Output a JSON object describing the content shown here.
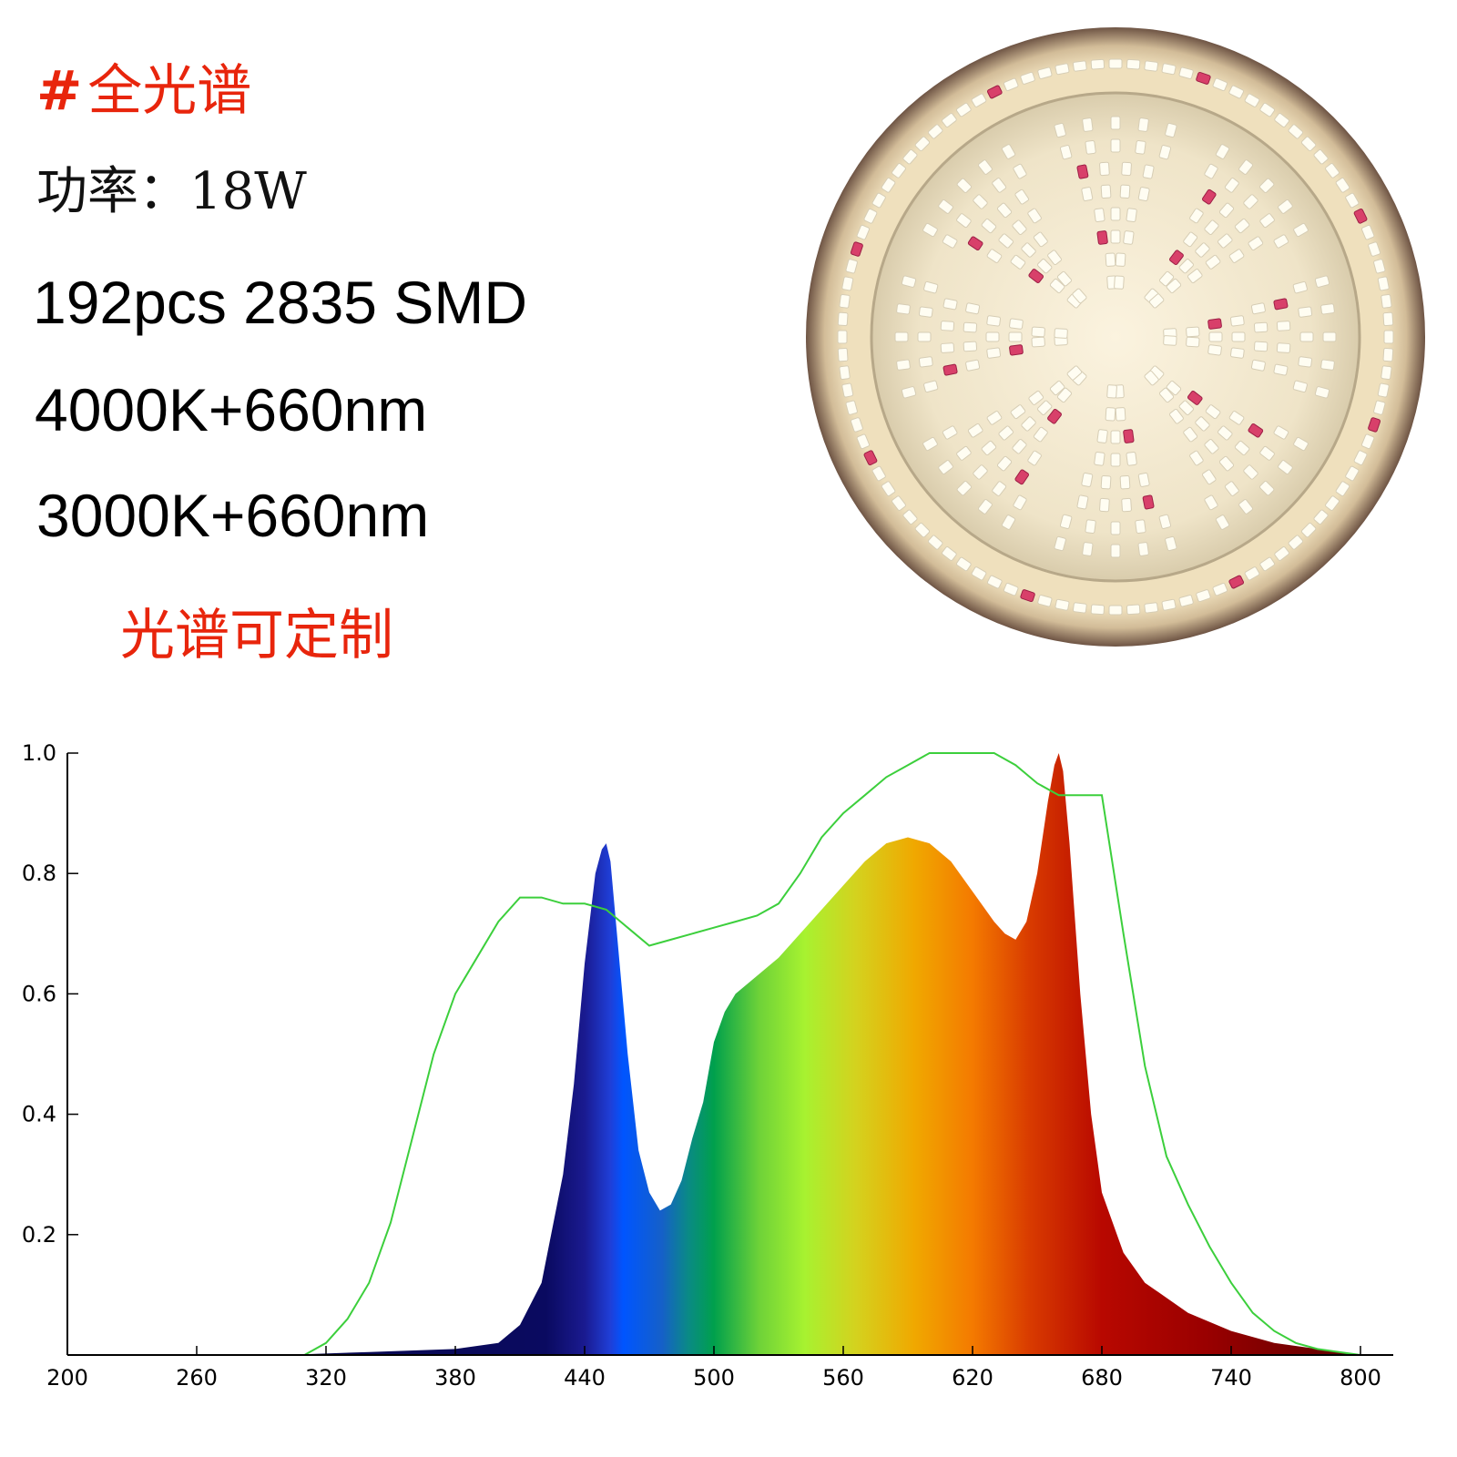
{
  "spec": {
    "title_mark": "#",
    "title": "全光谱",
    "power": "功率：18W",
    "led": "192pcs 2835 SMD",
    "mix1": "4000K+660nm",
    "mix2": "3000K+660nm",
    "custom": "光谱可定制"
  },
  "colors": {
    "accent": "#e8250c",
    "text": "#000000",
    "reference_curve": "#3ccf3c",
    "lamp_rim": "#8a6f5c",
    "lamp_glow": "#f3e7c9",
    "led_white": "#fffdf2",
    "led_red": "#d8406a"
  },
  "lamp": {
    "image": "round-led-grow-light-panel",
    "white_led_color": "#fffdf2",
    "red_led_color": "#d8406a"
  },
  "chart_data": {
    "type": "area",
    "title": "",
    "xlabel": "",
    "ylabel": "",
    "xlim": [
      200,
      800
    ],
    "ylim": [
      0,
      1.0
    ],
    "xticks": [
      200,
      260,
      320,
      380,
      440,
      500,
      560,
      620,
      680,
      740,
      800
    ],
    "xtick_labels": [
      "200",
      "260",
      "320",
      "380",
      "440",
      "500",
      "560",
      "620",
      "680",
      "740",
      "800"
    ],
    "yticks": [
      0.2,
      0.4,
      0.6,
      0.8,
      1.0
    ],
    "ytick_labels": [
      "0.2",
      "0.4",
      "0.6",
      "0.8",
      "1.0"
    ],
    "grid": false,
    "legend": "none",
    "series": [
      {
        "kind": "spectrum-fill",
        "x": [
          200,
          300,
          340,
          380,
          400,
          410,
          420,
          430,
          435,
          440,
          445,
          448,
          450,
          452,
          455,
          460,
          465,
          470,
          475,
          480,
          485,
          490,
          495,
          500,
          505,
          510,
          520,
          530,
          540,
          550,
          560,
          570,
          580,
          590,
          600,
          610,
          620,
          630,
          635,
          640,
          645,
          650,
          655,
          658,
          660,
          662,
          665,
          670,
          675,
          680,
          690,
          700,
          720,
          740,
          760,
          780,
          800
        ],
        "y": [
          0.0,
          0.0,
          0.005,
          0.01,
          0.02,
          0.05,
          0.12,
          0.3,
          0.45,
          0.65,
          0.8,
          0.84,
          0.85,
          0.82,
          0.7,
          0.5,
          0.34,
          0.27,
          0.24,
          0.25,
          0.29,
          0.36,
          0.42,
          0.52,
          0.57,
          0.6,
          0.63,
          0.66,
          0.7,
          0.74,
          0.78,
          0.82,
          0.85,
          0.86,
          0.85,
          0.82,
          0.77,
          0.72,
          0.7,
          0.69,
          0.72,
          0.8,
          0.92,
          0.98,
          1.0,
          0.97,
          0.85,
          0.6,
          0.4,
          0.27,
          0.17,
          0.12,
          0.07,
          0.04,
          0.02,
          0.01,
          0.0
        ]
      },
      {
        "kind": "reference-line",
        "x": [
          200,
          310,
          320,
          330,
          340,
          350,
          360,
          370,
          380,
          390,
          400,
          410,
          420,
          430,
          440,
          450,
          460,
          470,
          480,
          490,
          500,
          510,
          520,
          530,
          540,
          550,
          560,
          570,
          580,
          590,
          600,
          610,
          620,
          630,
          640,
          650,
          660,
          670,
          680,
          690,
          700,
          710,
          720,
          730,
          740,
          750,
          760,
          770,
          780,
          790,
          800
        ],
        "y": [
          0.0,
          0.0,
          0.02,
          0.06,
          0.12,
          0.22,
          0.36,
          0.5,
          0.6,
          0.66,
          0.72,
          0.76,
          0.76,
          0.75,
          0.75,
          0.74,
          0.71,
          0.68,
          0.69,
          0.7,
          0.71,
          0.72,
          0.73,
          0.75,
          0.8,
          0.86,
          0.9,
          0.93,
          0.96,
          0.98,
          1.0,
          1.0,
          1.0,
          1.0,
          0.98,
          0.95,
          0.93,
          0.93,
          0.93,
          0.7,
          0.48,
          0.33,
          0.25,
          0.18,
          0.12,
          0.07,
          0.04,
          0.02,
          0.01,
          0.005,
          0.0
        ]
      }
    ]
  }
}
